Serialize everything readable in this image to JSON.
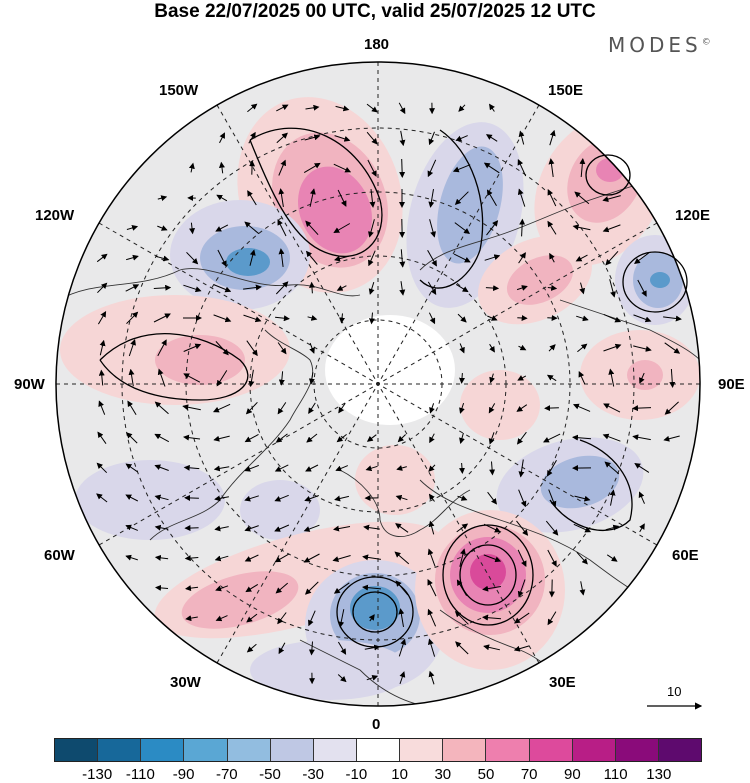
{
  "title": "Base 22/07/2025 00 UTC, valid 25/07/2025 12 UTC",
  "brand": {
    "name": "MODES",
    "mark": "©"
  },
  "longitude_labels": {
    "top": "180",
    "bottom": "0",
    "left": "90W",
    "right": "90E",
    "upper_left_1": "150W",
    "upper_left_2": "120W",
    "upper_right_1": "150E",
    "upper_right_2": "120E",
    "lower_left_1": "60W",
    "lower_left_2": "30W",
    "lower_right_1": "60E",
    "lower_right_2": "30E"
  },
  "reference_vector": {
    "label": "10"
  },
  "colorbar": {
    "colors": [
      "#0e4a6e",
      "#17689a",
      "#2b8bc4",
      "#5aa7d4",
      "#92bde0",
      "#bfc8e4",
      "#e3e1ef",
      "#ffffff",
      "#f8dcdc",
      "#f4b5bd",
      "#ee7fae",
      "#dd4a9c",
      "#b81e86",
      "#8a0b7a",
      "#5e0a6e"
    ],
    "labels": [
      "-130",
      "-110",
      "-90",
      "-70",
      "-50",
      "-30",
      "-10",
      "10",
      "30",
      "50",
      "70",
      "90",
      "110",
      "130"
    ]
  },
  "colors": {
    "neutral_shade": "#e9e9ea",
    "light_blue": "#d9d7ea",
    "mid_blue": "#a9b9dd",
    "deep_blue": "#5b9acb",
    "light_pink": "#f6d6d6",
    "mid_pink": "#f1b4c0",
    "deep_pink": "#e884b4",
    "hot_pink": "#d94a9a"
  }
}
